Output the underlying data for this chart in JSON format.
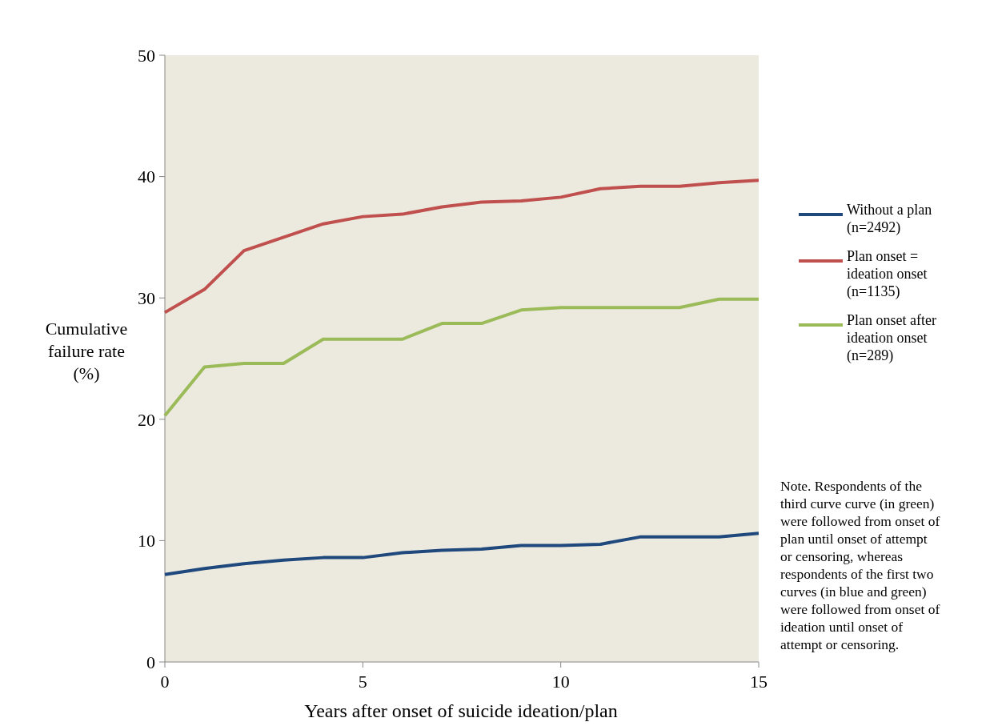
{
  "chart_data": {
    "type": "line",
    "xlabel": "Years after onset of suicide ideation/plan",
    "ylabel": "Cumulative failure rate (%)",
    "x": [
      0,
      1,
      2,
      3,
      4,
      5,
      6,
      7,
      8,
      9,
      10,
      11,
      12,
      13,
      14,
      15
    ],
    "series": [
      {
        "name": "Without a plan (n=2492)",
        "color": "#1f497d",
        "values": [
          7.2,
          7.7,
          8.1,
          8.4,
          8.6,
          8.6,
          9.0,
          9.2,
          9.3,
          9.6,
          9.6,
          9.7,
          10.3,
          10.3,
          10.3,
          10.6
        ]
      },
      {
        "name": "Plan onset = ideation onset (n=1135)",
        "color": "#c0504d",
        "values": [
          28.8,
          30.7,
          33.9,
          35.0,
          36.1,
          36.7,
          36.9,
          37.5,
          37.9,
          38.0,
          38.3,
          39.0,
          39.2,
          39.2,
          39.5,
          39.7
        ]
      },
      {
        "name": "Plan onset after ideation onset (n=289)",
        "color": "#9bbb59",
        "values": [
          20.3,
          24.3,
          24.6,
          24.6,
          26.6,
          26.6,
          26.6,
          27.9,
          27.9,
          29.0,
          29.2,
          29.2,
          29.2,
          29.2,
          29.9,
          29.9
        ]
      }
    ],
    "xlim": [
      0,
      15
    ],
    "xticks": [
      0,
      5,
      10,
      15
    ],
    "ylim": [
      0,
      50
    ],
    "yticks": [
      0,
      10,
      20,
      30,
      40,
      50
    ],
    "legend": "right",
    "grid": false,
    "marker": "none",
    "line_style": "solid",
    "annotations": [
      "Note. Respondents of the third curve curve (in green) were followed from onset of plan until onset of attempt or censoring, whereas respondents of the first two curves (in blue and green) were followed from onset of ideation until onset of attempt or censoring."
    ]
  }
}
